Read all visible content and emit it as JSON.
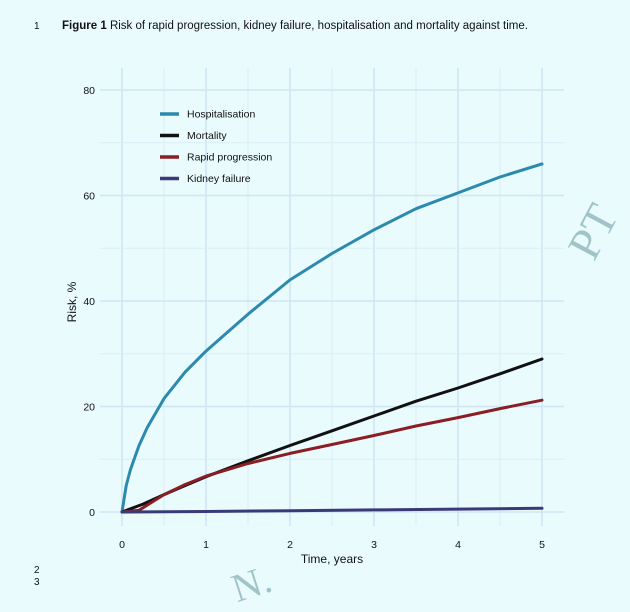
{
  "page": {
    "line_numbers": [
      "1",
      "2",
      "3"
    ],
    "figure_label": "Figure 1",
    "figure_caption": "Risk of rapid progression, kidney failure, hospitalisation and mortality against time.",
    "watermark_right": "PT",
    "watermark_bottom": "N."
  },
  "chart_data": {
    "type": "line",
    "title": "",
    "xlabel": "Time, years",
    "ylabel": "Risk, %",
    "xlim": [
      0,
      5
    ],
    "ylim": [
      0,
      80
    ],
    "xticks": [
      0,
      1,
      2,
      3,
      4,
      5
    ],
    "yticks": [
      0,
      20,
      40,
      60,
      80
    ],
    "grid": true,
    "legend_position": "top-left",
    "series": [
      {
        "name": "Hospitalisation",
        "color": "#2b8aad",
        "x": [
          0,
          0.05,
          0.1,
          0.2,
          0.3,
          0.5,
          0.75,
          1,
          1.25,
          1.5,
          2,
          2.5,
          3,
          3.5,
          4,
          4.5,
          5
        ],
        "y": [
          0,
          5,
          8,
          12.5,
          16,
          21.5,
          26.5,
          30.5,
          34,
          37.5,
          44,
          49,
          53.5,
          57.5,
          60.5,
          63.5,
          66
        ]
      },
      {
        "name": "Mortality",
        "color": "#111111",
        "x": [
          0,
          0.25,
          0.5,
          0.75,
          1,
          1.5,
          2,
          2.5,
          3,
          3.5,
          4,
          4.5,
          5
        ],
        "y": [
          0,
          1.5,
          3.3,
          5,
          6.7,
          9.7,
          12.6,
          15.4,
          18.2,
          21,
          23.5,
          26.2,
          29
        ]
      },
      {
        "name": "Rapid progression",
        "color": "#8b1e24",
        "x": [
          0,
          0.2,
          0.35,
          0.5,
          0.75,
          1,
          1.25,
          1.5,
          2,
          2.5,
          3,
          3.5,
          4,
          4.5,
          5
        ],
        "y": [
          0,
          0.3,
          1.8,
          3.3,
          5.2,
          6.8,
          8,
          9.2,
          11.1,
          12.8,
          14.5,
          16.3,
          17.9,
          19.6,
          21.2
        ]
      },
      {
        "name": "Kidney failure",
        "color": "#3a3a78",
        "x": [
          0,
          1,
          2,
          3,
          4,
          5
        ],
        "y": [
          0,
          0.1,
          0.25,
          0.4,
          0.55,
          0.7
        ]
      }
    ]
  }
}
